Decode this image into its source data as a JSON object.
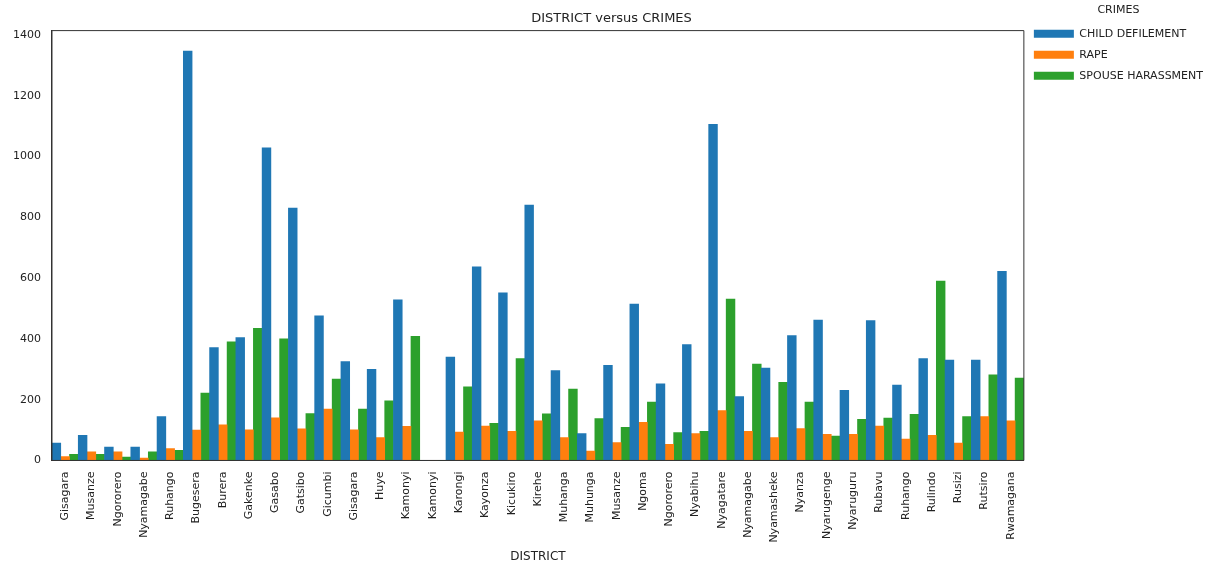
{
  "chart_data": {
    "type": "bar",
    "title": "DISTRICT versus CRIMES",
    "xlabel": "DISTRICT",
    "legend_title": "CRIMES",
    "legend": "top right",
    "grid": false,
    "categories": [
      "Gisagara",
      "Musanze",
      "Ngororero",
      "Nyamagabe",
      "Ruhango",
      "Bugesera",
      "Burera",
      "Gakenke",
      "Gasabo",
      "Gatsibo",
      "Gicumbi",
      "Gisagara",
      "Huye",
      "Kamonyi",
      "Kamonyi",
      "Karongi",
      "Kayonza",
      "Kicukiro",
      "Kirehe",
      "Muhanga",
      "Muhunga",
      "Musanze",
      "Ngoma",
      "Ngororero",
      "Nyabihu",
      "Nyagatare",
      "Nyamagabe",
      "Nyamasheke",
      "Nyanza",
      "Nyarugenge",
      "Nyaruguru",
      "Rubavu",
      "Ruhango",
      "Rulindo",
      "Rusizi",
      "Rutsiro",
      "Rwamagana"
    ],
    "series": [
      {
        "name": "CHILD DEFILEMENT",
        "color": "#1f77b4",
        "values": [
          57,
          83,
          44,
          44,
          144,
          1347,
          371,
          404,
          1028,
          830,
          476,
          325,
          300,
          528,
          0,
          340,
          637,
          551,
          840,
          296,
          88,
          313,
          514,
          252,
          381,
          1106,
          210,
          304,
          411,
          462,
          231,
          460,
          248,
          335,
          330,
          330,
          622
        ]
      },
      {
        "name": "RAPE",
        "color": "#ff7f0e",
        "values": [
          13,
          28,
          28,
          8,
          39,
          100,
          117,
          101,
          140,
          104,
          169,
          101,
          75,
          112,
          0,
          93,
          113,
          96,
          130,
          75,
          31,
          59,
          125,
          53,
          88,
          164,
          96,
          75,
          105,
          86,
          86,
          113,
          70,
          83,
          57,
          144,
          130
        ]
      },
      {
        "name": "SPOUSE HARASSMENT",
        "color": "#2ca02c",
        "values": [
          20,
          20,
          11,
          28,
          33,
          222,
          390,
          435,
          400,
          154,
          268,
          169,
          196,
          408,
          0,
          242,
          122,
          335,
          153,
          235,
          138,
          109,
          192,
          92,
          96,
          531,
          317,
          257,
          192,
          80,
          135,
          139,
          152,
          590,
          144,
          282,
          271
        ]
      }
    ],
    "ylim": [
      0,
      1414
    ],
    "yticks": [
      0,
      200,
      400,
      600,
      800,
      1000,
      1200,
      1400
    ]
  }
}
